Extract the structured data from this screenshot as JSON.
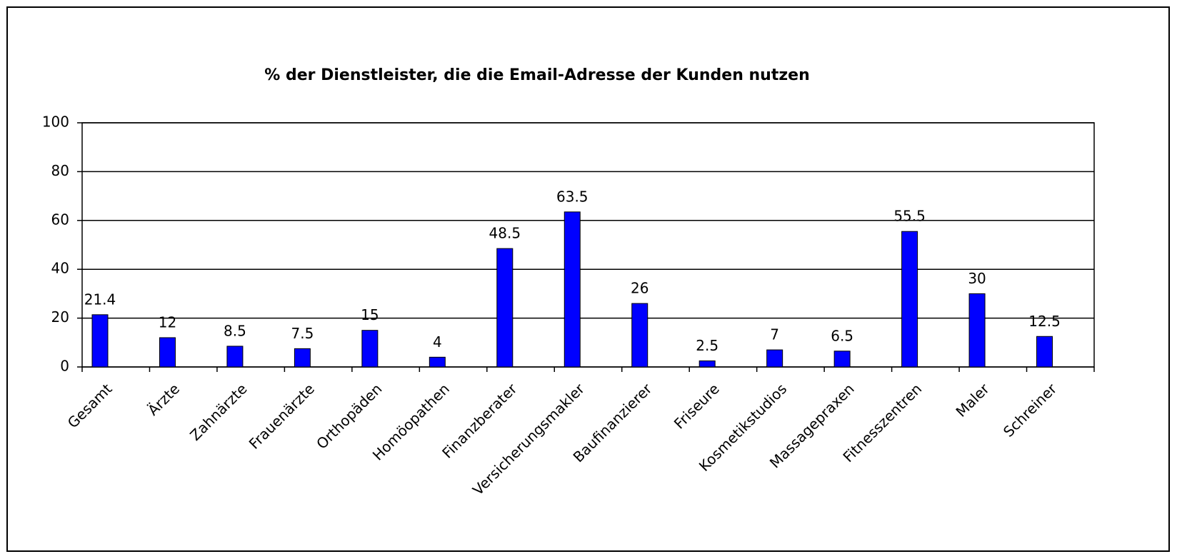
{
  "chart_data": {
    "type": "bar",
    "title": "% der Dienstleister, die die Email-Adresse der Kunden nutzen",
    "categories": [
      "Gesamt",
      "Ärzte",
      "Zahnärzte",
      "Frauenärzte",
      "Orthopäden",
      "Homöopathen",
      "Finanzberater",
      "Versicherungsmakler",
      "Baufinanzierer",
      "Friseure",
      "Kosmetikstudios",
      "Massagepraxen",
      "Fitnesszentren",
      "Maler",
      "Schreiner"
    ],
    "values": [
      21.4,
      12,
      8.5,
      7.5,
      15,
      4,
      48.5,
      63.5,
      26,
      2.5,
      7,
      6.5,
      55.5,
      30,
      12.5
    ],
    "color": "#0000ff",
    "ylim": [
      0,
      100
    ],
    "yticks": [
      0,
      20,
      40,
      60,
      80,
      100
    ],
    "grid": true
  }
}
